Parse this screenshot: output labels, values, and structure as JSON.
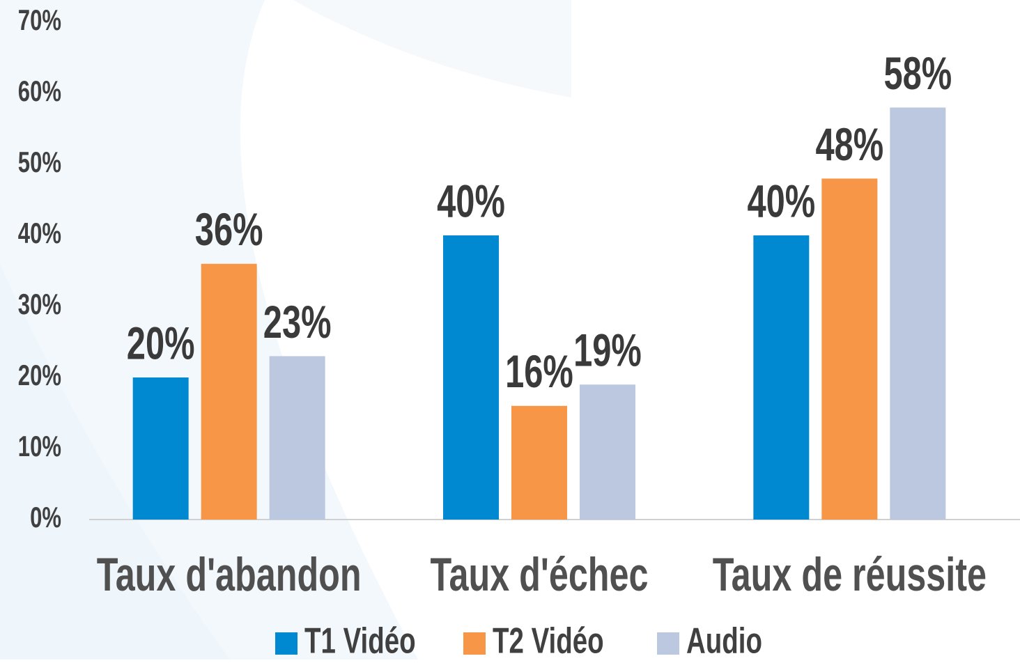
{
  "chart_data": {
    "type": "bar",
    "categories": [
      "Taux d'abandon",
      "Taux d'échec",
      "Taux de réussite"
    ],
    "series": [
      {
        "name": "T1 Vidéo",
        "color": "#0088d1",
        "values": [
          20,
          40,
          40
        ],
        "value_labels": [
          "20%",
          "40%",
          "40%"
        ]
      },
      {
        "name": "T2 Vidéo",
        "color": "#f79646",
        "values": [
          36,
          16,
          48
        ],
        "value_labels": [
          "36%",
          "16%",
          "48%"
        ]
      },
      {
        "name": "Audio",
        "color": "#bcc8e0",
        "values": [
          23,
          19,
          58
        ],
        "value_labels": [
          "23%",
          "19%",
          "58%"
        ]
      }
    ],
    "ylim": [
      0,
      70
    ],
    "yticks": [
      {
        "value": 0,
        "label": "0%"
      },
      {
        "value": 10,
        "label": "10%"
      },
      {
        "value": 20,
        "label": "20%"
      },
      {
        "value": 30,
        "label": "30%"
      },
      {
        "value": 40,
        "label": "40%"
      },
      {
        "value": 50,
        "label": "50%"
      },
      {
        "value": 60,
        "label": "60%"
      },
      {
        "value": 70,
        "label": "70%"
      }
    ],
    "legend": "bottom",
    "grid": false
  }
}
